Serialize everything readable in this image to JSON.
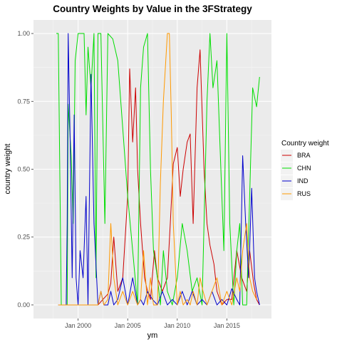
{
  "chart_data": {
    "type": "line",
    "title": "Country Weights by Value in the 3FStrategy",
    "xlabel": "ym",
    "ylabel": "country weight",
    "xlim": [
      1995.5,
      2019.5
    ],
    "ylim": [
      -0.05,
      1.05
    ],
    "x_ticks": [
      {
        "value": 2000,
        "label": "Jan 2000"
      },
      {
        "value": 2005,
        "label": "Jan 2005"
      },
      {
        "value": 2010,
        "label": "Jan 2010"
      },
      {
        "value": 2015,
        "label": "Jan 2015"
      }
    ],
    "y_ticks": [
      {
        "value": 0,
        "label": "0.00"
      },
      {
        "value": 0.25,
        "label": "0.25"
      },
      {
        "value": 0.5,
        "label": "0.50"
      },
      {
        "value": 0.75,
        "label": "0.75"
      },
      {
        "value": 1.0,
        "label": "1.00"
      }
    ],
    "grid": true,
    "legend": {
      "title": "Country weight",
      "position": "right"
    },
    "series": [
      {
        "name": "BRA",
        "color": "#cc0000",
        "x": [
          1998.0,
          2000.0,
          2002.0,
          2002.5,
          2003.0,
          2003.3,
          2003.6,
          2004.0,
          2004.5,
          2005.0,
          2005.2,
          2005.5,
          2005.8,
          2006.0,
          2006.3,
          2006.7,
          2007.0,
          2007.3,
          2007.7,
          2008.0,
          2008.5,
          2009.0,
          2009.3,
          2009.6,
          2010.0,
          2010.3,
          2010.6,
          2011.0,
          2011.3,
          2011.6,
          2012.0,
          2012.3,
          2012.7,
          2013.0,
          2013.3,
          2013.7,
          2014.0,
          2014.5,
          2015.0,
          2015.5,
          2016.0,
          2016.5,
          2017.0,
          2017.3,
          2017.7,
          2018.0,
          2018.3
        ],
        "y": [
          0,
          0,
          0,
          0.02,
          0.04,
          0.08,
          0.25,
          0.05,
          0.1,
          0.4,
          0.87,
          0.6,
          0.8,
          0.5,
          0.3,
          0.1,
          0.05,
          0.02,
          0.2,
          0.1,
          0.05,
          0.1,
          0.3,
          0.52,
          0.58,
          0.4,
          0.5,
          0.6,
          0.63,
          0.3,
          0.8,
          0.94,
          0.5,
          0.3,
          0.22,
          0.15,
          0.05,
          0,
          0.02,
          0.02,
          0.2,
          0.1,
          0.05,
          0.2,
          0.08,
          0.02,
          0
        ]
      },
      {
        "name": "CHN",
        "color": "#00dd00",
        "x": [
          1997.8,
          1998.0,
          1998.3,
          1998.6,
          1998.8,
          1998.9,
          1999.0,
          1999.3,
          1999.5,
          1999.7,
          2000.0,
          2000.3,
          2000.6,
          2000.8,
          2001.0,
          2001.3,
          2001.6,
          2001.8,
          2002.0,
          2002.3,
          2002.7,
          2003.0,
          2003.5,
          2004.0,
          2004.5,
          2005.0,
          2005.5,
          2006.0,
          2006.3,
          2006.6,
          2007.0,
          2007.3,
          2007.6,
          2008.0,
          2008.3,
          2008.6,
          2009.0,
          2009.5,
          2010.0,
          2010.5,
          2011.0,
          2011.5,
          2012.0,
          2012.5,
          2013.0,
          2013.3,
          2013.6,
          2014.0,
          2014.3,
          2014.7,
          2015.0,
          2015.3,
          2015.7,
          2016.0,
          2016.3,
          2016.6,
          2017.0,
          2017.3,
          2017.6,
          2018.0,
          2018.3
        ],
        "y": [
          1,
          1,
          0.0,
          0.0,
          0.0,
          0.0,
          0.74,
          0.55,
          0.3,
          0.9,
          1,
          1,
          1,
          0.7,
          0.95,
          0.8,
          1,
          0.1,
          1,
          1,
          0.3,
          1,
          0.98,
          0.9,
          0.65,
          0.4,
          0.2,
          0.0,
          0.8,
          0.95,
          1,
          0.5,
          0.2,
          0.1,
          0.0,
          0.2,
          0.05,
          0.0,
          0.1,
          0.3,
          0.2,
          0.05,
          0.1,
          0.0,
          0.75,
          1,
          0.8,
          0.9,
          0.6,
          0.2,
          1,
          0.3,
          0.0,
          0.2,
          0.3,
          0.0,
          0.0,
          0.4,
          0.8,
          0.73,
          0.84
        ]
      },
      {
        "name": "IND",
        "color": "#0000cc",
        "x": [
          1998.0,
          1998.8,
          1998.9,
          1999.0,
          1999.2,
          1999.4,
          1999.6,
          1999.8,
          2000.0,
          2000.2,
          2000.5,
          2000.8,
          2001.0,
          2001.3,
          2001.6,
          2002.0,
          2002.3,
          2002.6,
          2003.0,
          2003.3,
          2003.6,
          2004.0,
          2004.5,
          2005.0,
          2005.5,
          2006.0,
          2006.3,
          2006.6,
          2007.0,
          2007.5,
          2008.0,
          2008.5,
          2009.0,
          2009.5,
          2010.0,
          2010.5,
          2011.0,
          2011.5,
          2012.0,
          2012.5,
          2013.0,
          2013.5,
          2014.0,
          2014.5,
          2015.0,
          2015.5,
          2016.0,
          2016.3,
          2016.6,
          2016.9,
          2017.2,
          2017.5,
          2017.8,
          2018.0,
          2018.3
        ],
        "y": [
          0,
          0,
          0.3,
          1,
          0.6,
          0.1,
          0.7,
          0.1,
          0.0,
          0.2,
          0.1,
          0.4,
          0.0,
          0.85,
          0.3,
          0.0,
          0.05,
          0.0,
          0.0,
          0.05,
          0.0,
          0.02,
          0.1,
          0.0,
          0.1,
          0.0,
          0.02,
          0.0,
          0.05,
          0.02,
          0.0,
          0.05,
          0.0,
          0.02,
          0.0,
          0.05,
          0.0,
          0.05,
          0.0,
          0.02,
          0.0,
          0.05,
          0.0,
          0.02,
          0.0,
          0.06,
          0.02,
          0.0,
          0.55,
          0.3,
          0.1,
          0.43,
          0.1,
          0.05,
          0.0
        ]
      },
      {
        "name": "RUS",
        "color": "#ff9900",
        "x": [
          1998.0,
          2001.0,
          2002.0,
          2002.3,
          2002.6,
          2003.0,
          2003.3,
          2003.6,
          2004.0,
          2004.5,
          2005.0,
          2005.5,
          2006.0,
          2006.3,
          2006.6,
          2007.0,
          2007.3,
          2007.6,
          2008.0,
          2008.3,
          2008.6,
          2009.0,
          2009.2,
          2009.4,
          2009.6,
          2010.0,
          2010.3,
          2010.6,
          2011.0,
          2011.3,
          2011.6,
          2012.0,
          2012.3,
          2012.6,
          2013.0,
          2013.5,
          2014.0,
          2014.5,
          2015.0,
          2015.5,
          2016.0,
          2016.3,
          2016.6,
          2017.0,
          2017.3,
          2017.6,
          2018.0
        ],
        "y": [
          0,
          0,
          0.0,
          0.05,
          0.0,
          0.02,
          0.3,
          0.1,
          0.0,
          0.05,
          0.0,
          0.05,
          0.0,
          0.02,
          0.2,
          0.0,
          0.1,
          0.0,
          0.0,
          0.45,
          0.75,
          1,
          1,
          0.7,
          0.3,
          0.0,
          0.05,
          0.0,
          0.02,
          0.0,
          0.05,
          0.0,
          0.1,
          0.05,
          0.0,
          0.05,
          0.1,
          0.0,
          0.05,
          0.0,
          0.1,
          0.05,
          0.2,
          0.3,
          0.1,
          0.05,
          0.02
        ]
      }
    ]
  }
}
